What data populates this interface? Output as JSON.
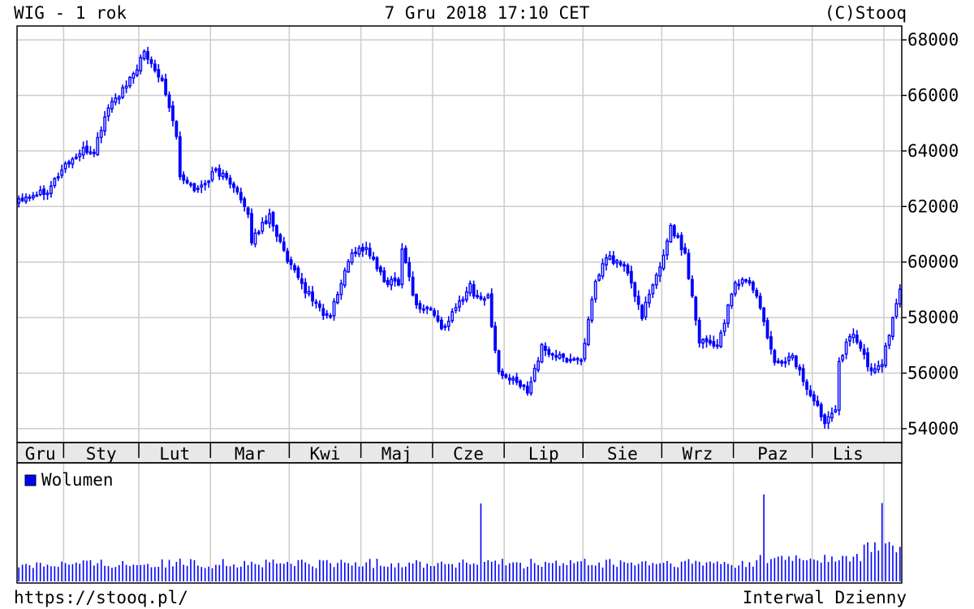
{
  "header": {
    "title": "WIG - 1 rok",
    "datetime": "7 Gru 2018 17:10 CET",
    "copyright": "(C)Stooq"
  },
  "footer": {
    "url": "https://stooq.pl/",
    "interval": "Interwal Dzienny"
  },
  "colors": {
    "series": "#0000ff",
    "grid": "#cccccc",
    "month_band": "#e8e8e8",
    "frame": "#000000"
  },
  "chart_data": [
    {
      "type": "candlestick",
      "title": "WIG - 1 rok",
      "ylabel": "",
      "xlabel": "",
      "ylim": [
        53500,
        68500
      ],
      "y_ticks": [
        54000,
        56000,
        58000,
        60000,
        62000,
        64000,
        66000,
        68000
      ],
      "y_axis_side": "right",
      "grid": true,
      "months": [
        "Gru",
        "Sty",
        "Lut",
        "Mar",
        "Kwi",
        "Maj",
        "Cze",
        "Lip",
        "Sie",
        "Wrz",
        "Paz",
        "Lis"
      ],
      "month_days": [
        13,
        21,
        20,
        22,
        20,
        20,
        20,
        22,
        22,
        20,
        22,
        20,
        5
      ],
      "trading_days": 247,
      "close_anchors": [
        [
          0,
          62300
        ],
        [
          8,
          62600
        ],
        [
          13,
          63500
        ],
        [
          18,
          64000
        ],
        [
          21,
          64000
        ],
        [
          25,
          65600
        ],
        [
          30,
          66300
        ],
        [
          35,
          67500
        ],
        [
          40,
          66600
        ],
        [
          44,
          64600
        ],
        [
          45,
          63000
        ],
        [
          50,
          62600
        ],
        [
          55,
          63300
        ],
        [
          60,
          62800
        ],
        [
          64,
          61600
        ],
        [
          65,
          60800
        ],
        [
          70,
          61700
        ],
        [
          75,
          60000
        ],
        [
          80,
          59000
        ],
        [
          86,
          58000
        ],
        [
          87,
          58100
        ],
        [
          93,
          60400
        ],
        [
          97,
          60500
        ],
        [
          102,
          59300
        ],
        [
          106,
          59300
        ],
        [
          107,
          60500
        ],
        [
          111,
          58400
        ],
        [
          115,
          58300
        ],
        [
          118,
          57600
        ],
        [
          121,
          58100
        ],
        [
          126,
          59200
        ],
        [
          127,
          58800
        ],
        [
          131,
          58700
        ],
        [
          134,
          56000
        ],
        [
          138,
          55700
        ],
        [
          142,
          55400
        ],
        [
          146,
          56900
        ],
        [
          147,
          56800
        ],
        [
          152,
          56500
        ],
        [
          157,
          56500
        ],
        [
          161,
          59200
        ],
        [
          164,
          60200
        ],
        [
          168,
          59900
        ],
        [
          169,
          59900
        ],
        [
          174,
          58100
        ],
        [
          179,
          59800
        ],
        [
          182,
          61300
        ],
        [
          186,
          60300
        ],
        [
          190,
          57200
        ],
        [
          191,
          57200
        ],
        [
          195,
          57000
        ],
        [
          200,
          59200
        ],
        [
          203,
          59400
        ],
        [
          206,
          58800
        ],
        [
          210,
          56800
        ],
        [
          211,
          56300
        ],
        [
          216,
          56600
        ],
        [
          221,
          55200
        ],
        [
          225,
          54300
        ],
        [
          228,
          54800
        ],
        [
          229,
          56500
        ],
        [
          233,
          57500
        ],
        [
          238,
          56000
        ],
        [
          241,
          56400
        ],
        [
          245,
          58400
        ],
        [
          246,
          59100
        ],
        [
          250,
          58600
        ],
        [
          251,
          58300
        ]
      ],
      "volume": {
        "legend": "Wolumen",
        "spikes": [
          [
            129,
            8.5
          ],
          [
            208,
            7.5
          ],
          [
            241,
            2.8
          ]
        ]
      }
    }
  ]
}
